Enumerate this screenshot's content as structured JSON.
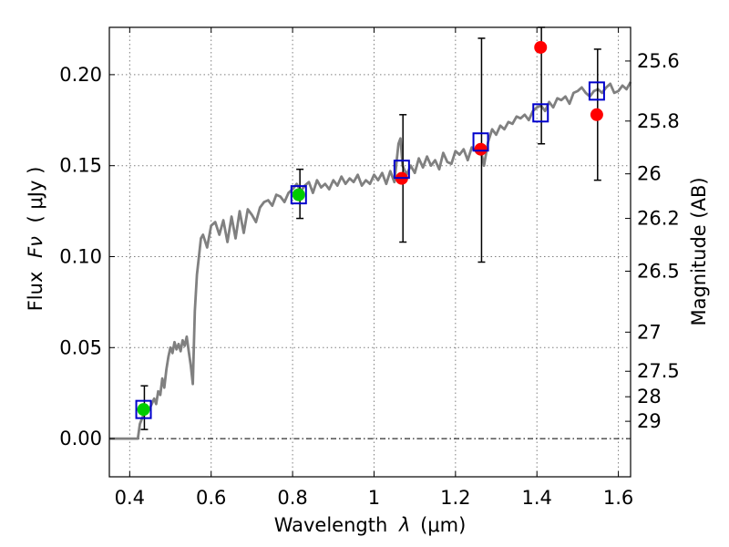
{
  "chart_data": {
    "type": "line",
    "xlabel": "Wavelength",
    "xlabel_symbol": "λ",
    "xlabel_unit": "(μm)",
    "ylabel": "Flux",
    "ylabel_symbol": "Fν",
    "ylabel_unit": "( μJy )",
    "ylabel_right": "Magnitude (AB)",
    "xlim": [
      0.35,
      1.63
    ],
    "ylim": [
      -0.021,
      0.226
    ],
    "grid": true,
    "x_ticks": [
      {
        "value": 0.4,
        "label": "0.4"
      },
      {
        "value": 0.6,
        "label": "0.6"
      },
      {
        "value": 0.8,
        "label": "0.8"
      },
      {
        "value": 1.0,
        "label": "1"
      },
      {
        "value": 1.2,
        "label": "1.2"
      },
      {
        "value": 1.4,
        "label": "1.4"
      },
      {
        "value": 1.6,
        "label": "1.6"
      }
    ],
    "y_ticks": [
      {
        "value": 0.0,
        "label": "0.00"
      },
      {
        "value": 0.05,
        "label": "0.05"
      },
      {
        "value": 0.1,
        "label": "0.10"
      },
      {
        "value": 0.15,
        "label": "0.15"
      },
      {
        "value": 0.2,
        "label": "0.20"
      }
    ],
    "right_ticks": [
      {
        "flux": 0.2075,
        "label": "25.6"
      },
      {
        "flux": 0.1745,
        "label": "25.8"
      },
      {
        "flux": 0.1455,
        "label": "26"
      },
      {
        "flux": 0.121,
        "label": "26.2"
      },
      {
        "flux": 0.092,
        "label": "26.5"
      },
      {
        "flux": 0.0585,
        "label": "27"
      },
      {
        "flux": 0.037,
        "label": "27.5"
      },
      {
        "flux": 0.023,
        "label": "28"
      },
      {
        "flux": 0.0095,
        "label": "29"
      }
    ],
    "series": [
      {
        "name": "Model spectrum",
        "color": "#808080",
        "x": [
          0.35,
          0.42,
          0.425,
          0.43,
          0.44,
          0.45,
          0.46,
          0.465,
          0.47,
          0.475,
          0.48,
          0.485,
          0.49,
          0.495,
          0.5,
          0.505,
          0.51,
          0.515,
          0.52,
          0.525,
          0.53,
          0.535,
          0.54,
          0.545,
          0.55,
          0.555,
          0.56,
          0.565,
          0.57,
          0.575,
          0.58,
          0.59,
          0.6,
          0.61,
          0.62,
          0.63,
          0.64,
          0.65,
          0.66,
          0.67,
          0.68,
          0.69,
          0.7,
          0.71,
          0.72,
          0.73,
          0.74,
          0.75,
          0.76,
          0.77,
          0.78,
          0.79,
          0.8,
          0.81,
          0.82,
          0.83,
          0.84,
          0.85,
          0.86,
          0.87,
          0.88,
          0.89,
          0.9,
          0.91,
          0.92,
          0.93,
          0.94,
          0.95,
          0.96,
          0.97,
          0.98,
          0.99,
          1.0,
          1.01,
          1.02,
          1.03,
          1.04,
          1.05,
          1.06,
          1.065,
          1.07,
          1.08,
          1.09,
          1.1,
          1.11,
          1.12,
          1.13,
          1.14,
          1.15,
          1.16,
          1.17,
          1.18,
          1.19,
          1.2,
          1.21,
          1.22,
          1.23,
          1.24,
          1.25,
          1.26,
          1.27,
          1.28,
          1.29,
          1.3,
          1.31,
          1.32,
          1.33,
          1.34,
          1.35,
          1.36,
          1.37,
          1.38,
          1.39,
          1.4,
          1.41,
          1.42,
          1.43,
          1.44,
          1.45,
          1.46,
          1.47,
          1.48,
          1.49,
          1.5,
          1.51,
          1.52,
          1.53,
          1.54,
          1.55,
          1.56,
          1.57,
          1.58,
          1.59,
          1.6,
          1.61,
          1.62,
          1.63
        ],
        "values": [
          0.0,
          0.0,
          0.008,
          0.011,
          0.016,
          0.017,
          0.022,
          0.019,
          0.026,
          0.024,
          0.033,
          0.028,
          0.038,
          0.045,
          0.05,
          0.047,
          0.053,
          0.049,
          0.052,
          0.048,
          0.054,
          0.051,
          0.056,
          0.048,
          0.04,
          0.03,
          0.07,
          0.09,
          0.1,
          0.11,
          0.112,
          0.105,
          0.117,
          0.119,
          0.112,
          0.12,
          0.108,
          0.122,
          0.11,
          0.125,
          0.113,
          0.126,
          0.123,
          0.119,
          0.127,
          0.13,
          0.131,
          0.128,
          0.134,
          0.133,
          0.13,
          0.135,
          0.137,
          0.14,
          0.136,
          0.139,
          0.141,
          0.135,
          0.142,
          0.138,
          0.14,
          0.137,
          0.142,
          0.139,
          0.144,
          0.14,
          0.143,
          0.141,
          0.145,
          0.139,
          0.142,
          0.14,
          0.145,
          0.142,
          0.146,
          0.14,
          0.147,
          0.141,
          0.162,
          0.165,
          0.15,
          0.145,
          0.15,
          0.146,
          0.154,
          0.149,
          0.155,
          0.15,
          0.153,
          0.148,
          0.157,
          0.152,
          0.151,
          0.158,
          0.156,
          0.159,
          0.153,
          0.16,
          0.158,
          0.161,
          0.15,
          0.163,
          0.17,
          0.167,
          0.172,
          0.17,
          0.174,
          0.173,
          0.177,
          0.176,
          0.178,
          0.175,
          0.18,
          0.182,
          0.183,
          0.18,
          0.185,
          0.182,
          0.187,
          0.186,
          0.188,
          0.184,
          0.19,
          0.191,
          0.193,
          0.19,
          0.188,
          0.191,
          0.192,
          0.19,
          0.193,
          0.195,
          0.19,
          0.191,
          0.194,
          0.192,
          0.196
        ]
      },
      {
        "name": "Red points",
        "color": "#ff0000",
        "marker": "circle",
        "x": [
          1.068,
          1.262,
          1.409,
          1.547
        ],
        "values": [
          0.143,
          0.159,
          0.215,
          0.178
        ]
      },
      {
        "name": "Green points",
        "color": "#00cc00",
        "marker": "circle",
        "x": [
          0.434,
          0.815
        ],
        "values": [
          0.016,
          0.134
        ]
      },
      {
        "name": "Blue squares",
        "color": "#0000cc",
        "marker": "square",
        "x": [
          0.434,
          0.815,
          1.068,
          1.262,
          1.409,
          1.547
        ],
        "values": [
          0.016,
          0.134,
          0.148,
          0.163,
          0.179,
          0.191
        ]
      }
    ],
    "error_bars": [
      {
        "x": 0.436,
        "low": 0.005,
        "high": 0.029
      },
      {
        "x": 0.818,
        "low": 0.121,
        "high": 0.148
      },
      {
        "x": 1.071,
        "low": 0.108,
        "high": 0.178
      },
      {
        "x": 1.264,
        "low": 0.097,
        "high": 0.22
      },
      {
        "x": 1.411,
        "low": 0.162,
        "high": 0.226
      },
      {
        "x": 1.549,
        "low": 0.142,
        "high": 0.214
      }
    ]
  }
}
